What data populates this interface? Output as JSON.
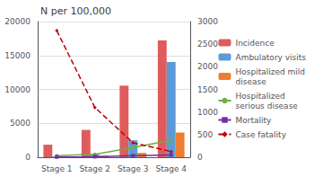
{
  "chart_data": {
    "type": "bar",
    "title": "N per 100,000",
    "categories": [
      "Stage 1",
      "Stage 2",
      "Stage 3",
      "Stage 4"
    ],
    "series": [
      {
        "name": "Incidence",
        "type": "bar",
        "color": "#e05c5c",
        "values": [
          1855,
          4028,
          10551,
          17209
        ]
      },
      {
        "name": "Ambulatory visits",
        "type": "bar",
        "color": "#5b9bd5",
        "values": [
          141,
          403,
          2500,
          14040
        ]
      },
      {
        "name": "Hospitalized mild\ndisease",
        "type": "bar",
        "color": "#ed7d31",
        "values": [
          130,
          228,
          638,
          3640
        ]
      },
      {
        "name": "Hospitalized\nserious disease",
        "type": "line",
        "axis": "y2",
        "color": "#70ad47",
        "marker": "circle",
        "line_style": "solid",
        "values": [
          34,
          63,
          213,
          379
        ]
      },
      {
        "name": "Mortality",
        "type": "line",
        "axis": "y2",
        "color": "#7030a0",
        "marker": "square",
        "line_style": "solid",
        "values": [
          5,
          12,
          35,
          52
        ]
      },
      {
        "name": "Case fatality",
        "type": "line",
        "axis": "y2",
        "color": "#c00000",
        "marker": "diamond",
        "line_style": "dashed",
        "values": [
          2800,
          1100,
          320,
          126
        ]
      }
    ],
    "ylim": [
      0,
      20000
    ],
    "yticks": [
      0,
      5000,
      10000,
      15000,
      20000
    ],
    "y2lim": [
      0,
      3000
    ],
    "y2ticks": [
      0,
      500,
      1000,
      1500,
      2000,
      2500,
      3000
    ],
    "grid": true,
    "legend": "right"
  }
}
